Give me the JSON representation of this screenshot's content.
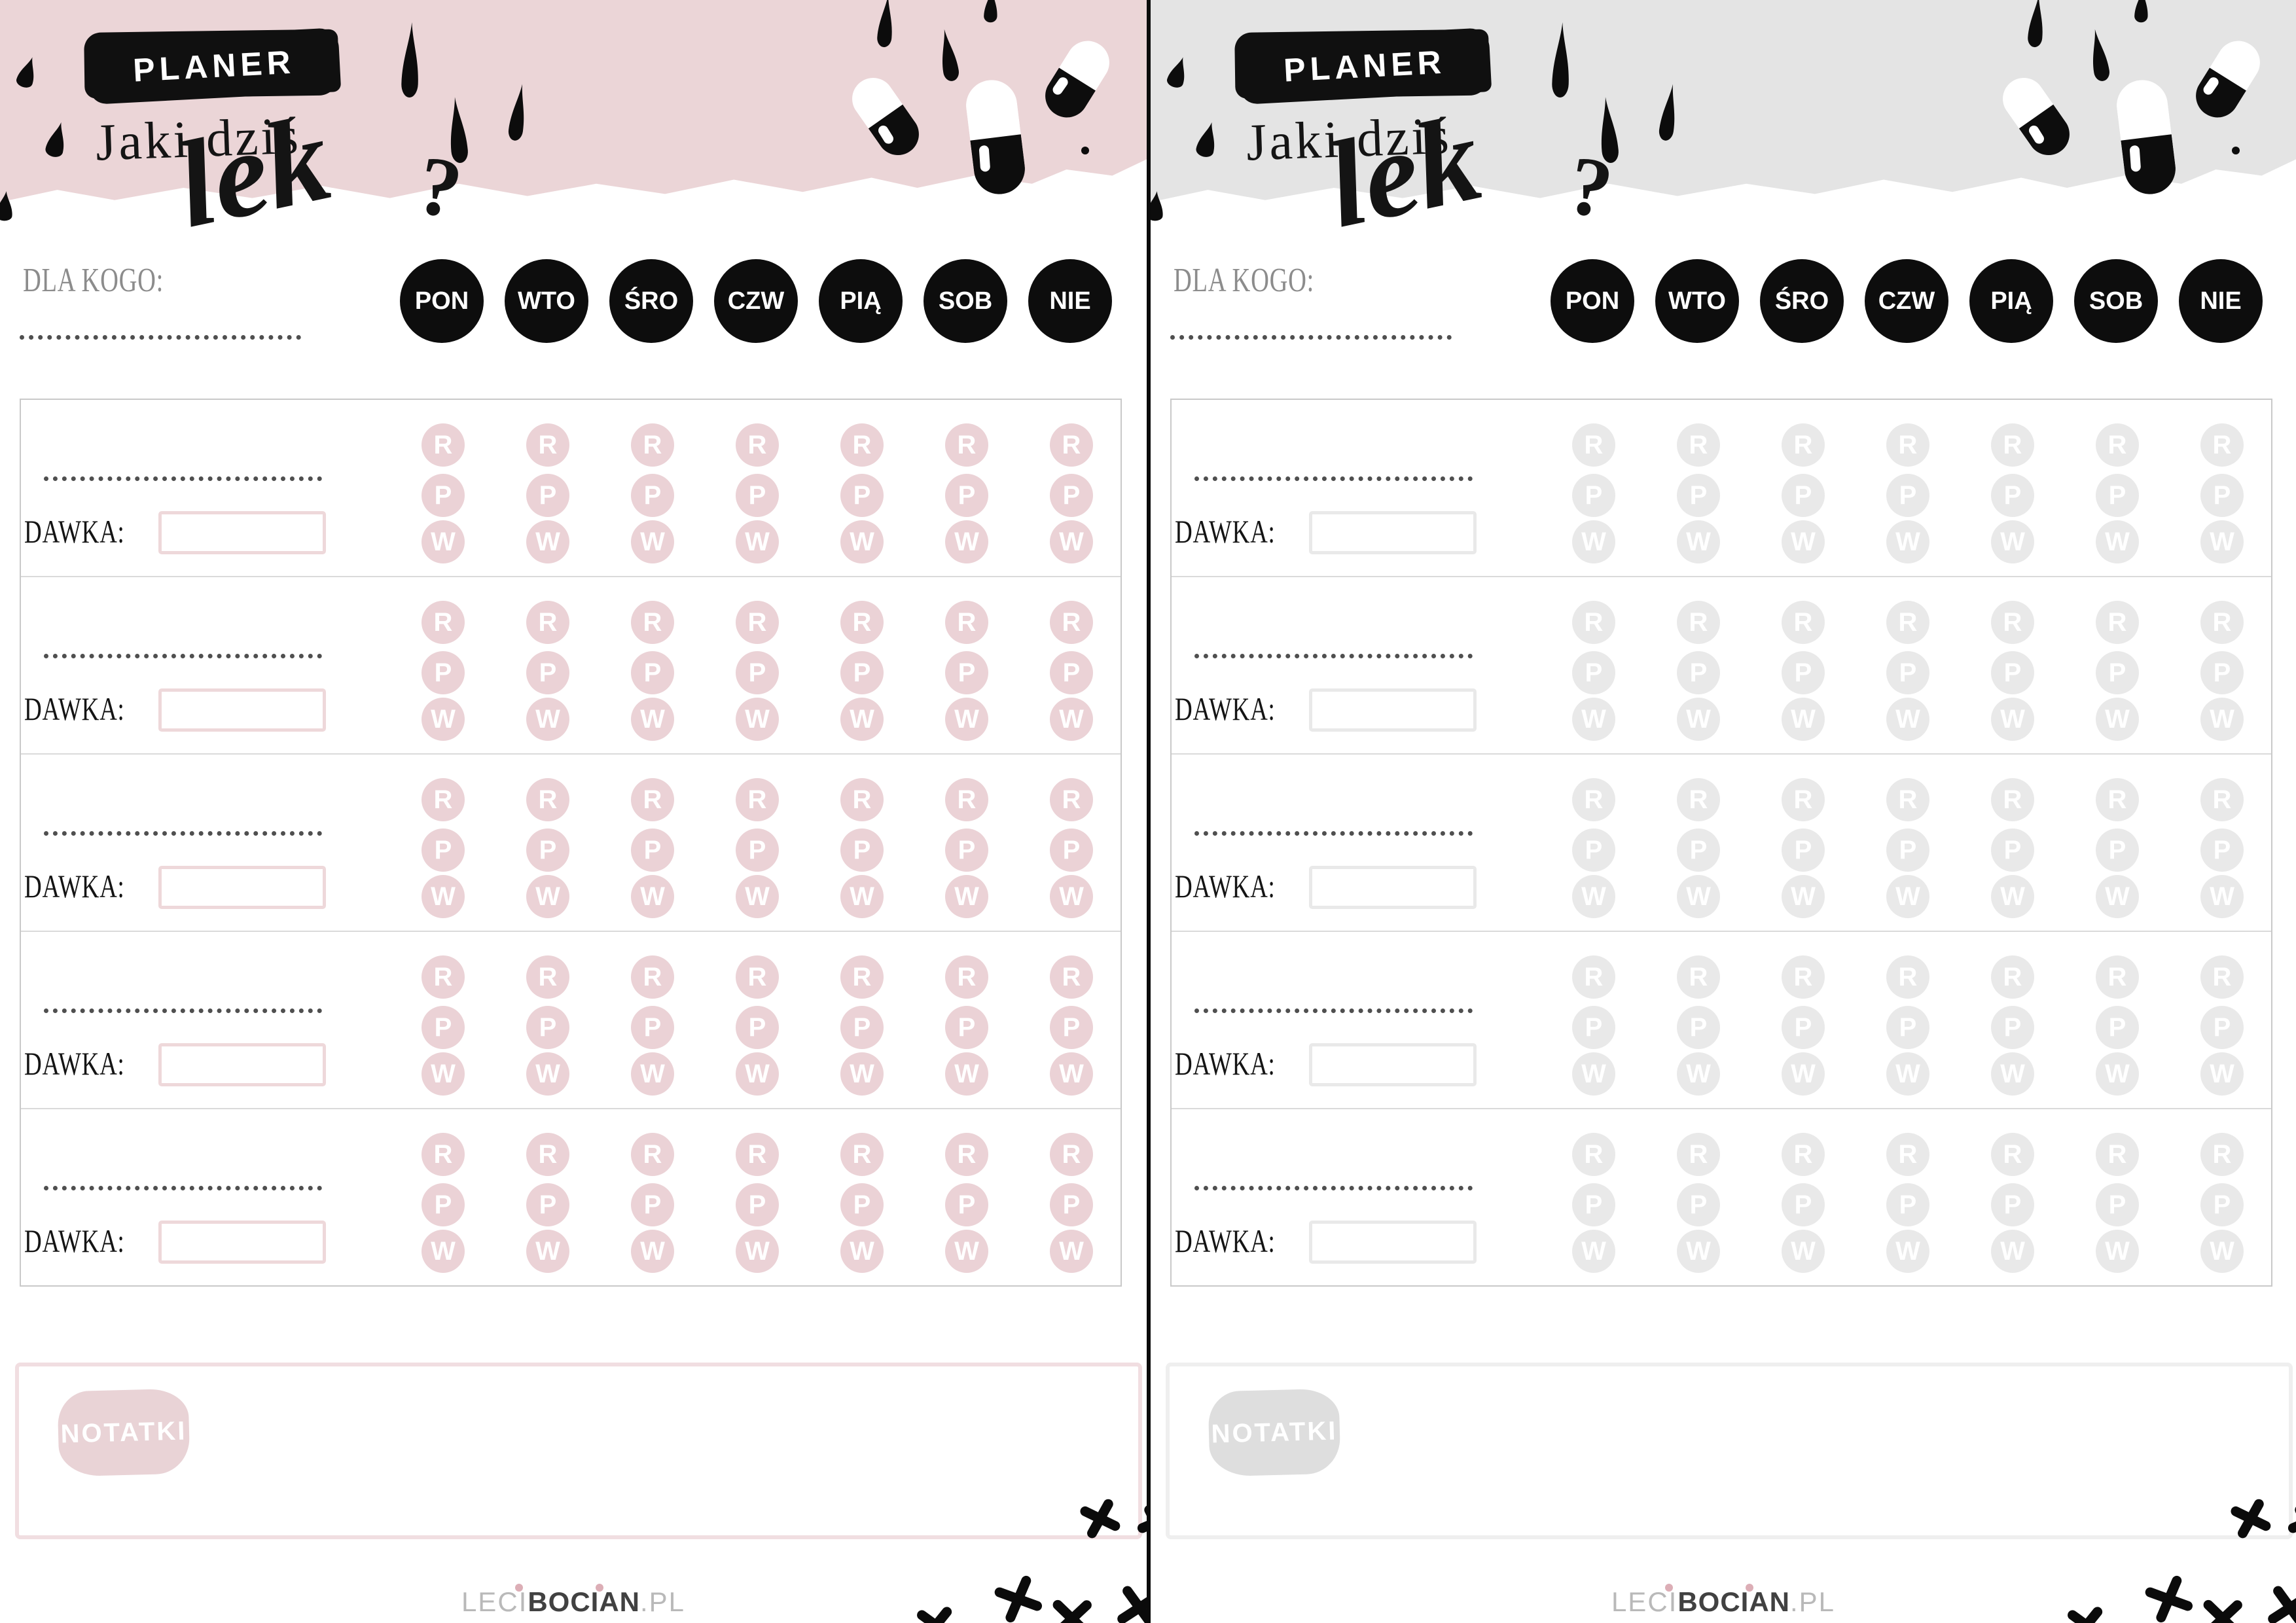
{
  "shared": {
    "badge_label": "PLANER",
    "title_script_pre": "Jaki dziś",
    "title_script_word": "lek",
    "title_question_mark": "?",
    "for_whom_label": "DLA KOGO:",
    "days": [
      "PON",
      "WTO",
      "ŚRO",
      "CZW",
      "PIĄ",
      "SOB",
      "NIE"
    ],
    "dose_label": "DAWKA:",
    "slots": [
      "R",
      "P",
      "W"
    ],
    "medicine_row_count": 5,
    "notes_label": "NOTATKI",
    "footer_logo": {
      "light_prefix": "LECI",
      "bold": "BOCIAN",
      "light_suffix": ".PL"
    }
  },
  "pages": [
    {
      "theme": "pink",
      "wash_color": "#ebd5d7",
      "slot_circle_color": "#ebd2d6",
      "dose_input_border_color": "#eed8da",
      "notes_border_color": "#f1dee1",
      "notes_badge_color": "#e9d3d6"
    },
    {
      "theme": "gray",
      "wash_color": "#e4e4e4",
      "slot_circle_color": "#e9e9e9",
      "dose_input_border_color": "#e9e9e9",
      "notes_border_color": "#efefef",
      "notes_badge_color": "#dedede"
    }
  ],
  "colors": {
    "day_circle": "#0d0d0d",
    "ink": "#0c0c0c",
    "table_border": "#c9c9c9",
    "row_divider": "#dadada",
    "for_whom_text": "#8c8c8c",
    "dose_text": "#141414",
    "footer_light": "#b9b9b9",
    "footer_bold": "#414141",
    "footer_accent_dot": "#dcaeb6"
  }
}
